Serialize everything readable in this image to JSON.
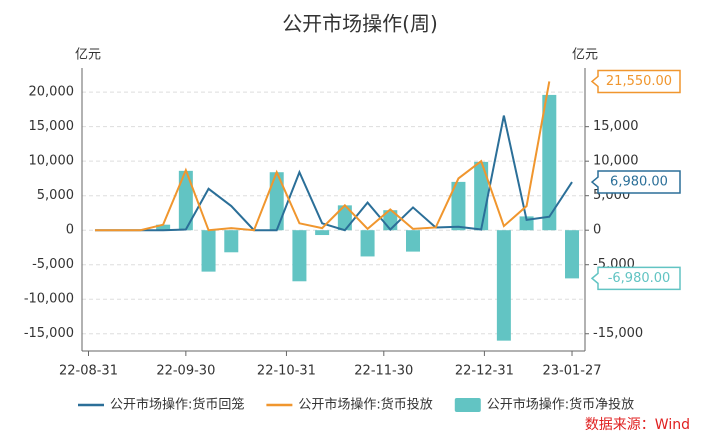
{
  "chart_data": {
    "type": "bar_line",
    "title": "公开市场操作(周)",
    "ylabel": "亿元",
    "y2label": "亿元",
    "source": "数据来源：Wind",
    "x": [
      "22-09-02",
      "22-09-09",
      "22-09-16",
      "22-09-23",
      "22-09-30",
      "22-10-07",
      "22-10-14",
      "22-10-21",
      "22-10-28",
      "22-11-04",
      "22-11-11",
      "22-11-18",
      "22-11-25",
      "22-12-02",
      "22-12-09",
      "22-12-16",
      "22-12-23",
      "22-12-30",
      "23-01-06",
      "23-01-13",
      "23-01-20",
      "23-01-27"
    ],
    "xlim": [
      "22-08-29",
      "23-01-31"
    ],
    "xticks": [
      "22-08-31",
      "22-09-30",
      "22-10-31",
      "22-11-30",
      "22-12-31",
      "23-01-27"
    ],
    "ylim": [
      -17500,
      23500
    ],
    "yticks": [
      {
        "value": -15000,
        "label": "-15,000"
      },
      {
        "value": -10000,
        "label": "-10,000"
      },
      {
        "value": -5000,
        "label": "-5,000"
      },
      0,
      {
        "value": 5000,
        "label": "5,000"
      },
      {
        "value": 10000,
        "label": "10,000"
      },
      {
        "value": 15000,
        "label": "15,000"
      },
      {
        "value": 20000,
        "label": "20,000"
      }
    ],
    "y2lim": [
      -17500,
      23500
    ],
    "y2ticks": [
      {
        "value": -15000,
        "label": "-15,000"
      },
      {
        "value": -5000,
        "label": "-5,000"
      },
      0,
      {
        "value": 5000,
        "label": "5,000"
      },
      {
        "value": 10000,
        "label": "10,000"
      },
      {
        "value": 15000,
        "label": "15,000"
      }
    ],
    "grid": true,
    "series": [
      {
        "name": "公开市场操作:货币回笼",
        "type": "line",
        "color": "#2b6f98",
        "end_label": "6,980.00",
        "values": [
          0,
          0,
          0,
          0,
          100,
          6000,
          3500,
          0,
          0,
          8400,
          1000,
          0,
          4000,
          100,
          3300,
          400,
          500,
          100,
          16600,
          1500,
          1950,
          6980
        ]
      },
      {
        "name": "公开市场操作:货币投放",
        "type": "line",
        "color": "#f0962e",
        "end_label": "21,550.00",
        "values": [
          0,
          0,
          0,
          800,
          8700,
          0,
          300,
          0,
          8400,
          1000,
          300,
          3600,
          200,
          3000,
          200,
          400,
          7500,
          10000,
          600,
          3500,
          21550,
          null
        ]
      },
      {
        "name": "公开市场操作:货币净投放",
        "type": "bar",
        "color": "#62c4c3",
        "end_label": "-6,980.00",
        "values": [
          0,
          0,
          0,
          800,
          8600,
          -6000,
          -3200,
          0,
          8400,
          -7400,
          -700,
          3600,
          -3800,
          2900,
          -3100,
          0,
          7000,
          9900,
          -16000,
          2000,
          19600,
          -6980
        ]
      }
    ]
  }
}
